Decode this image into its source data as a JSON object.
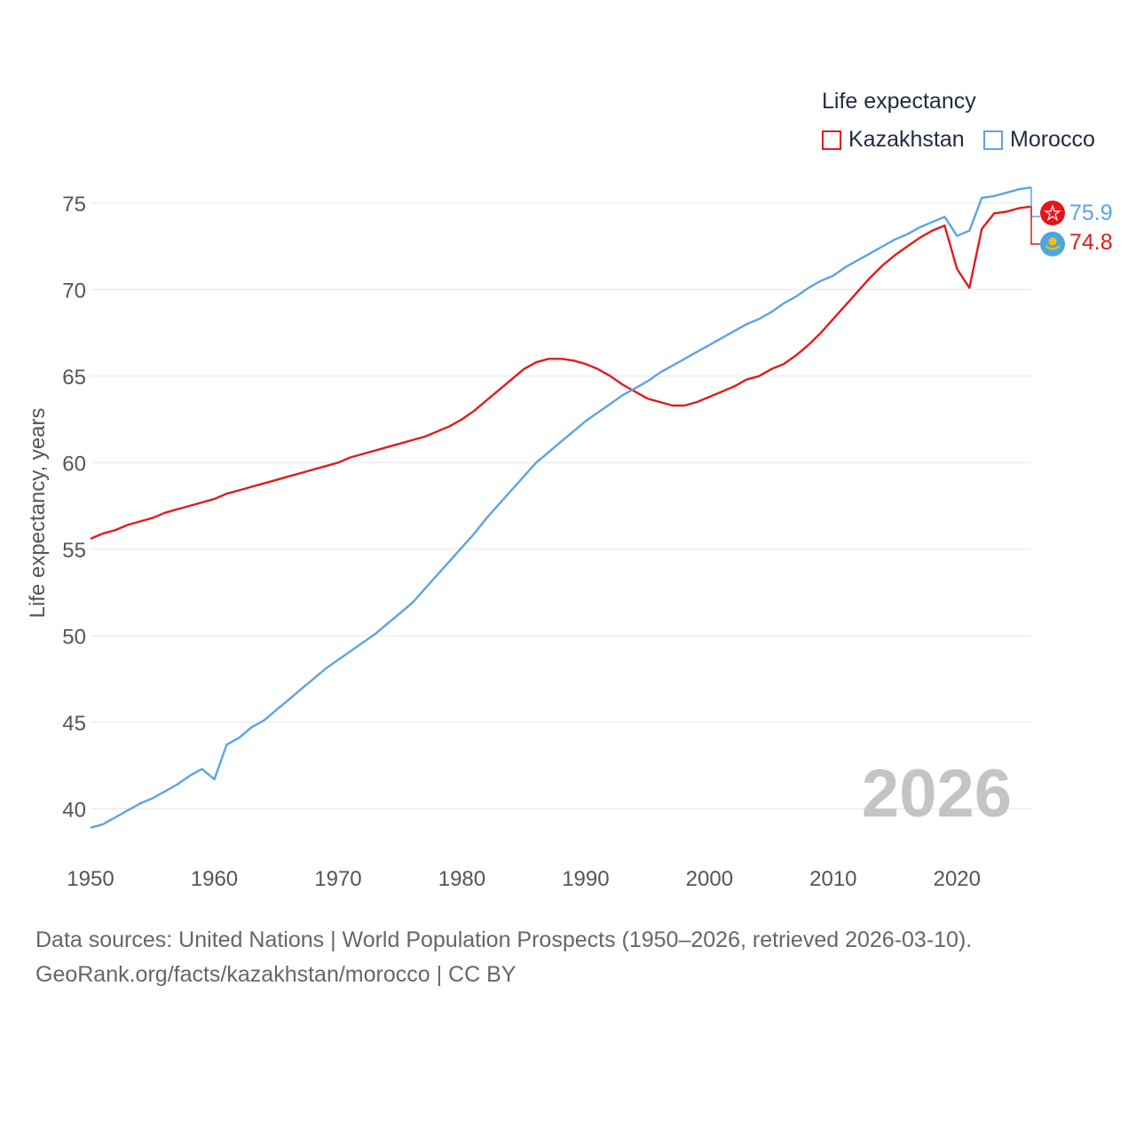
{
  "legend": {
    "title": "Life expectancy",
    "items": [
      {
        "label": "Kazakhstan",
        "color": "#e31a1c"
      },
      {
        "label": "Morocco",
        "color": "#5ca3e6"
      }
    ]
  },
  "source": {
    "line1": "Data sources: United Nations | World Population Prospects (1950–2026, retrieved 2026-03-10).",
    "line2": "GeoRank.org/facts/kazakhstan/morocco | CC BY"
  },
  "chart_data": {
    "type": "line",
    "title": "Life expectancy",
    "xlabel": "",
    "ylabel": "Life expectancy, years",
    "xlim": [
      1950,
      2026
    ],
    "ylim": [
      37.5,
      77.5
    ],
    "x_ticks": [
      1950,
      1960,
      1970,
      1980,
      1990,
      2000,
      2010,
      2020
    ],
    "y_ticks": [
      40,
      45,
      50,
      55,
      60,
      65,
      70,
      75
    ],
    "grid": true,
    "legend_position": "top-right",
    "year_label": "2026",
    "end_labels": {
      "morocco": "75.9",
      "kazakhstan": "74.8"
    },
    "series": [
      {
        "name": "Kazakhstan",
        "color": "#e31a1c",
        "points": [
          [
            1950,
            55.6
          ],
          [
            1951,
            55.9
          ],
          [
            1952,
            56.1
          ],
          [
            1953,
            56.4
          ],
          [
            1954,
            56.6
          ],
          [
            1955,
            56.8
          ],
          [
            1956,
            57.1
          ],
          [
            1957,
            57.3
          ],
          [
            1958,
            57.5
          ],
          [
            1959,
            57.7
          ],
          [
            1960,
            57.9
          ],
          [
            1961,
            58.2
          ],
          [
            1962,
            58.4
          ],
          [
            1963,
            58.6
          ],
          [
            1964,
            58.8
          ],
          [
            1965,
            59.0
          ],
          [
            1966,
            59.2
          ],
          [
            1967,
            59.4
          ],
          [
            1968,
            59.6
          ],
          [
            1969,
            59.8
          ],
          [
            1970,
            60.0
          ],
          [
            1971,
            60.3
          ],
          [
            1972,
            60.5
          ],
          [
            1973,
            60.7
          ],
          [
            1974,
            60.9
          ],
          [
            1975,
            61.1
          ],
          [
            1976,
            61.3
          ],
          [
            1977,
            61.5
          ],
          [
            1978,
            61.8
          ],
          [
            1979,
            62.1
          ],
          [
            1980,
            62.5
          ],
          [
            1981,
            63.0
          ],
          [
            1982,
            63.6
          ],
          [
            1983,
            64.2
          ],
          [
            1984,
            64.8
          ],
          [
            1985,
            65.4
          ],
          [
            1986,
            65.8
          ],
          [
            1987,
            66.0
          ],
          [
            1988,
            66.0
          ],
          [
            1989,
            65.9
          ],
          [
            1990,
            65.7
          ],
          [
            1991,
            65.4
          ],
          [
            1992,
            65.0
          ],
          [
            1993,
            64.5
          ],
          [
            1994,
            64.1
          ],
          [
            1995,
            63.7
          ],
          [
            1996,
            63.5
          ],
          [
            1997,
            63.3
          ],
          [
            1998,
            63.3
          ],
          [
            1999,
            63.5
          ],
          [
            2000,
            63.8
          ],
          [
            2001,
            64.1
          ],
          [
            2002,
            64.4
          ],
          [
            2003,
            64.8
          ],
          [
            2004,
            65.0
          ],
          [
            2005,
            65.4
          ],
          [
            2006,
            65.7
          ],
          [
            2007,
            66.2
          ],
          [
            2008,
            66.8
          ],
          [
            2009,
            67.5
          ],
          [
            2010,
            68.3
          ],
          [
            2011,
            69.1
          ],
          [
            2012,
            69.9
          ],
          [
            2013,
            70.7
          ],
          [
            2014,
            71.4
          ],
          [
            2015,
            72.0
          ],
          [
            2016,
            72.5
          ],
          [
            2017,
            73.0
          ],
          [
            2018,
            73.4
          ],
          [
            2019,
            73.7
          ],
          [
            2020,
            71.2
          ],
          [
            2021,
            70.1
          ],
          [
            2022,
            73.5
          ],
          [
            2023,
            74.4
          ],
          [
            2024,
            74.5
          ],
          [
            2025,
            74.7
          ],
          [
            2026,
            74.8
          ]
        ]
      },
      {
        "name": "Morocco",
        "color": "#5ca3e6",
        "points": [
          [
            1950,
            38.9
          ],
          [
            1951,
            39.1
          ],
          [
            1952,
            39.5
          ],
          [
            1953,
            39.9
          ],
          [
            1954,
            40.3
          ],
          [
            1955,
            40.6
          ],
          [
            1956,
            41.0
          ],
          [
            1957,
            41.4
          ],
          [
            1958,
            41.9
          ],
          [
            1959,
            42.3
          ],
          [
            1960,
            41.7
          ],
          [
            1961,
            43.7
          ],
          [
            1962,
            44.1
          ],
          [
            1963,
            44.7
          ],
          [
            1964,
            45.1
          ],
          [
            1965,
            45.7
          ],
          [
            1966,
            46.3
          ],
          [
            1967,
            46.9
          ],
          [
            1968,
            47.5
          ],
          [
            1969,
            48.1
          ],
          [
            1970,
            48.6
          ],
          [
            1971,
            49.1
          ],
          [
            1972,
            49.6
          ],
          [
            1973,
            50.1
          ],
          [
            1974,
            50.7
          ],
          [
            1975,
            51.3
          ],
          [
            1976,
            51.9
          ],
          [
            1977,
            52.7
          ],
          [
            1978,
            53.5
          ],
          [
            1979,
            54.3
          ],
          [
            1980,
            55.1
          ],
          [
            1981,
            55.9
          ],
          [
            1982,
            56.8
          ],
          [
            1983,
            57.6
          ],
          [
            1984,
            58.4
          ],
          [
            1985,
            59.2
          ],
          [
            1986,
            60.0
          ],
          [
            1987,
            60.6
          ],
          [
            1988,
            61.2
          ],
          [
            1989,
            61.8
          ],
          [
            1990,
            62.4
          ],
          [
            1991,
            62.9
          ],
          [
            1992,
            63.4
          ],
          [
            1993,
            63.9
          ],
          [
            1994,
            64.3
          ],
          [
            1995,
            64.7
          ],
          [
            1996,
            65.2
          ],
          [
            1997,
            65.6
          ],
          [
            1998,
            66.0
          ],
          [
            1999,
            66.4
          ],
          [
            2000,
            66.8
          ],
          [
            2001,
            67.2
          ],
          [
            2002,
            67.6
          ],
          [
            2003,
            68.0
          ],
          [
            2004,
            68.3
          ],
          [
            2005,
            68.7
          ],
          [
            2006,
            69.2
          ],
          [
            2007,
            69.6
          ],
          [
            2008,
            70.1
          ],
          [
            2009,
            70.5
          ],
          [
            2010,
            70.8
          ],
          [
            2011,
            71.3
          ],
          [
            2012,
            71.7
          ],
          [
            2013,
            72.1
          ],
          [
            2014,
            72.5
          ],
          [
            2015,
            72.9
          ],
          [
            2016,
            73.2
          ],
          [
            2017,
            73.6
          ],
          [
            2018,
            73.9
          ],
          [
            2019,
            74.2
          ],
          [
            2020,
            73.1
          ],
          [
            2021,
            73.4
          ],
          [
            2022,
            75.3
          ],
          [
            2023,
            75.4
          ],
          [
            2024,
            75.6
          ],
          [
            2025,
            75.8
          ],
          [
            2026,
            75.9
          ]
        ]
      }
    ]
  }
}
